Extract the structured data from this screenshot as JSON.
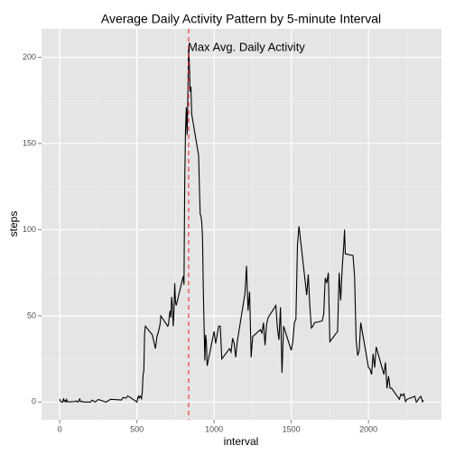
{
  "chart_data": {
    "type": "line",
    "title": "Average Daily Activity Pattern by 5-minute Interval",
    "xlabel": "interval",
    "ylabel": "steps",
    "annotation": "Max Avg. Daily Activity",
    "color": "#000000",
    "vline": {
      "x": 835,
      "color": "#ff3333"
    },
    "xlim": [
      -117.75,
      2472.75
    ],
    "ylim": [
      -10.3,
      216.5
    ],
    "xticks": [
      0,
      500,
      1000,
      1500,
      2000
    ],
    "yticks": [
      0,
      50,
      100,
      150,
      200
    ],
    "xminor": [
      250,
      750,
      1250,
      1750,
      2250
    ],
    "yminor": [
      25,
      75,
      125,
      175
    ],
    "grid": true,
    "x": [
      0,
      5,
      10,
      15,
      20,
      25,
      30,
      35,
      40,
      45,
      50,
      55,
      100,
      105,
      110,
      115,
      120,
      125,
      130,
      135,
      140,
      145,
      150,
      155,
      200,
      210,
      230,
      250,
      300,
      330,
      400,
      410,
      430,
      440,
      450,
      500,
      505,
      510,
      515,
      520,
      525,
      530,
      535,
      540,
      545,
      550,
      555,
      600,
      610,
      620,
      630,
      640,
      650,
      655,
      700,
      705,
      710,
      715,
      720,
      725,
      730,
      735,
      740,
      745,
      750,
      755,
      800,
      805,
      810,
      815,
      820,
      825,
      830,
      835,
      840,
      845,
      850,
      855,
      900,
      905,
      910,
      915,
      920,
      925,
      930,
      935,
      940,
      945,
      950,
      955,
      1000,
      1010,
      1020,
      1030,
      1040,
      1050,
      1100,
      1110,
      1120,
      1130,
      1140,
      1150,
      1200,
      1210,
      1220,
      1230,
      1240,
      1250,
      1300,
      1310,
      1320,
      1330,
      1340,
      1350,
      1400,
      1410,
      1420,
      1430,
      1440,
      1450,
      1500,
      1510,
      1520,
      1530,
      1540,
      1550,
      1600,
      1610,
      1620,
      1630,
      1640,
      1650,
      1700,
      1710,
      1720,
      1730,
      1740,
      1750,
      1800,
      1810,
      1820,
      1830,
      1840,
      1845,
      1850,
      1900,
      1910,
      1920,
      1930,
      1940,
      1950,
      2000,
      2010,
      2020,
      2030,
      2040,
      2050,
      2100,
      2110,
      2120,
      2130,
      2140,
      2150,
      2200,
      2210,
      2220,
      2230,
      2240,
      2250,
      2300,
      2310,
      2320,
      2330,
      2340,
      2350,
      2355
    ],
    "values": [
      1.7,
      0.3,
      0.1,
      0.2,
      0,
      2.1,
      0.5,
      0.9,
      0,
      1.5,
      0.3,
      0.1,
      0.3,
      0.7,
      0.2,
      0.3,
      0,
      1.1,
      1.8,
      0.2,
      0.2,
      0.4,
      0.3,
      0,
      0,
      1.1,
      0,
      1.5,
      0,
      1.6,
      1.2,
      2.6,
      2.3,
      3.5,
      3.1,
      0,
      2,
      3.3,
      2.4,
      3.5,
      3,
      2,
      6,
      16,
      18,
      40,
      44,
      39,
      35,
      31,
      38,
      41,
      45,
      50,
      44,
      45,
      50,
      53,
      49,
      61,
      56,
      44,
      52,
      69,
      58,
      56,
      73,
      68,
      129,
      158,
      171,
      155,
      177,
      206.2,
      196,
      180,
      183,
      167,
      143,
      124,
      109,
      108,
      104,
      96,
      66,
      45,
      24,
      39,
      35,
      21,
      41,
      34,
      39,
      44,
      44,
      25,
      31,
      29,
      37,
      34,
      26,
      35,
      63,
      79,
      53,
      64,
      26,
      38,
      42,
      40,
      46,
      33,
      45,
      49,
      56,
      43,
      36,
      55,
      17,
      44,
      30,
      35,
      46,
      48,
      91,
      102,
      62,
      74,
      56,
      43,
      44,
      46,
      47,
      51,
      72,
      69,
      75,
      35,
      41,
      75,
      59,
      78,
      91,
      100,
      86,
      85,
      73,
      36,
      27,
      30,
      46,
      20,
      19,
      16,
      28,
      20,
      32,
      16,
      23,
      8,
      15,
      8,
      8,
      1.6,
      4.6,
      3.7,
      4.7,
      0.3,
      1.6,
      3.3,
      0,
      1,
      2.6,
      3.3,
      0.2,
      1.1
    ]
  }
}
